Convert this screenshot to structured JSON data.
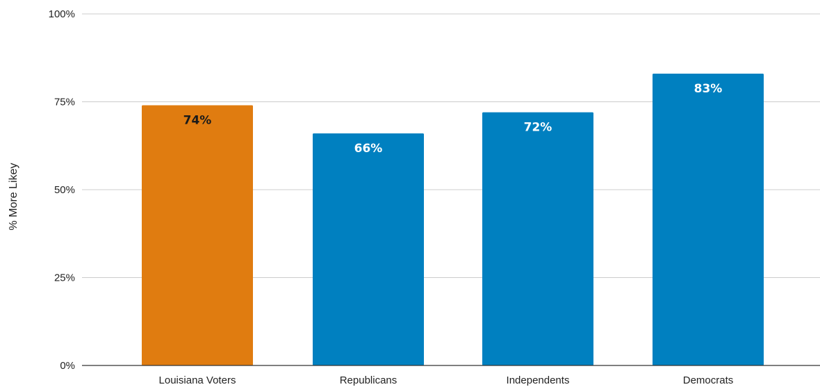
{
  "chart_data": {
    "type": "bar",
    "title": "",
    "xlabel": "",
    "ylabel": "% More Likey",
    "ylim": [
      0,
      100
    ],
    "y_ticks": [
      {
        "value": 0,
        "label": "0%"
      },
      {
        "value": 25,
        "label": "25%"
      },
      {
        "value": 50,
        "label": "50%"
      },
      {
        "value": 75,
        "label": "75%"
      },
      {
        "value": 100,
        "label": "100%"
      }
    ],
    "grid": true,
    "legend": "none",
    "categories": [
      "Louisiana Voters",
      "Republicans",
      "Independents",
      "Democrats"
    ],
    "values": [
      74,
      66,
      72,
      83
    ],
    "data_labels": [
      "74%",
      "66%",
      "72%",
      "83%"
    ],
    "bar_colors": [
      "#e07c10",
      "#0080c0",
      "#0080c0",
      "#0080c0"
    ],
    "data_label_colors": [
      "#1a1a1a",
      "#ffffff",
      "#ffffff",
      "#ffffff"
    ]
  }
}
